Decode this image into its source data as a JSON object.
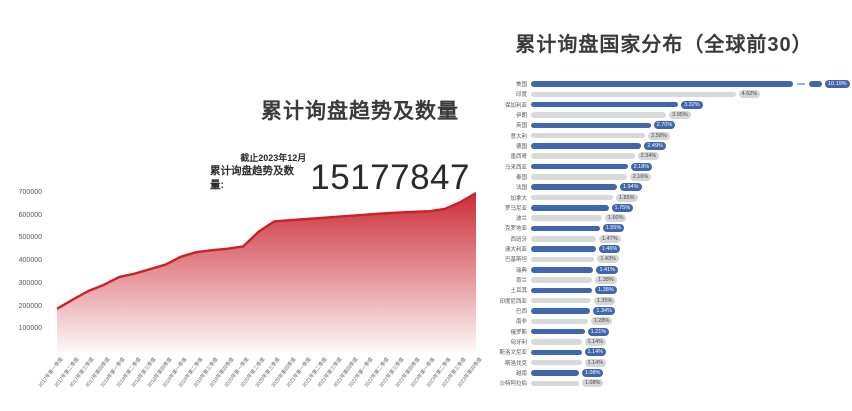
{
  "trend_chart": {
    "title": "累计询盘趋势及数量",
    "note": "截止2023年12月",
    "stat_label": "累计询盘趋势及数量:",
    "stat_value": "15177847"
  },
  "country_chart": {
    "title": "累计询盘国家分布（全球前30）"
  },
  "colors": {
    "area_red": "#c9202b",
    "bar_blue": "#4066ae",
    "bar_gray": "#d9d9d9",
    "pill_gray_bg": "#d6d6d6",
    "pill_gray_text": "#4a4a4a",
    "axis_text": "#595959"
  },
  "chart_data": [
    {
      "type": "area",
      "title": "累计询盘趋势及数量",
      "annotation": {
        "note": "截止2023年12月",
        "label": "累计询盘趋势及数量:",
        "value": "15177847"
      },
      "x": [
        "2017年第一季度",
        "2017年第二季度",
        "2017年第三季度",
        "2017年第四季度",
        "2018年第一季度",
        "2018年第二季度",
        "2018年第三季度",
        "2018年第四季度",
        "2019年第一季度",
        "2019年第二季度",
        "2019年第三季度",
        "2019年第四季度",
        "2020年第一季度",
        "2020年第二季度",
        "2020年第三季度",
        "2020年第四季度",
        "2021年第一季度",
        "2021年第二季度",
        "2021年第三季度",
        "2021年第四季度",
        "2022年第一季度",
        "2022年第二季度",
        "2022年第三季度",
        "2022年第四季度",
        "2023年第一季度",
        "2023年第二季度",
        "2023年第三季度",
        "2023年第四季度"
      ],
      "values": [
        190000,
        230000,
        268000,
        295000,
        330000,
        345000,
        365000,
        385000,
        420000,
        440000,
        448000,
        455000,
        465000,
        530000,
        575000,
        580000,
        585000,
        590000,
        595000,
        600000,
        605000,
        610000,
        614000,
        617000,
        620000,
        630000,
        660000,
        700000
      ],
      "yticks": [
        100000,
        200000,
        300000,
        400000,
        500000,
        600000,
        700000
      ],
      "ylim": [
        0,
        700000
      ],
      "grid": false,
      "legend": "none"
    },
    {
      "type": "bar",
      "orientation": "horizontal",
      "title": "累计询盘国家分布（全球前30）",
      "categories": [
        "美国",
        "印度",
        "保加利亚",
        "伊朗",
        "英国",
        "意大利",
        "德国",
        "墨西哥",
        "马来西亚",
        "泰国",
        "法国",
        "加拿大",
        "罗马尼亚",
        "波兰",
        "克罗地亚",
        "西班牙",
        "澳大利亚",
        "巴基斯坦",
        "瑞典",
        "荷兰",
        "土耳其",
        "印度尼西亚",
        "巴西",
        "南非",
        "俄罗斯",
        "匈牙利",
        "斯洛文尼亚",
        "斯洛伐克",
        "越南",
        "沙特阿拉伯"
      ],
      "values": [
        10.19,
        4.62,
        3.32,
        3.05,
        2.7,
        2.58,
        2.49,
        2.34,
        2.18,
        2.16,
        1.94,
        1.85,
        1.75,
        1.6,
        1.55,
        1.47,
        1.46,
        1.43,
        1.41,
        1.38,
        1.38,
        1.35,
        1.34,
        1.28,
        1.21,
        1.14,
        1.14,
        1.14,
        1.08,
        1.08
      ],
      "labels": [
        "10.19%",
        "4.62%",
        "3.32%",
        "3.05%",
        "2.70%",
        "2.58%",
        "2.49%",
        "2.34%",
        "2.18%",
        "2.16%",
        "1.94%",
        "1.85%",
        "1.75%",
        "1.60%",
        "1.55%",
        "1.47%",
        "1.46%",
        "1.43%",
        "1.41%",
        "1.38%",
        "1.38%",
        "1.35%",
        "1.34%",
        "1.28%",
        "1.21%",
        "1.14%",
        "1.14%",
        "1.14%",
        "1.08%",
        "1.08%"
      ],
      "bar_color_odd_rows": "#4066ae",
      "bar_color_even_rows": "#d9d9d9",
      "axis_break_on_first_bar": true,
      "legend": "none"
    }
  ]
}
